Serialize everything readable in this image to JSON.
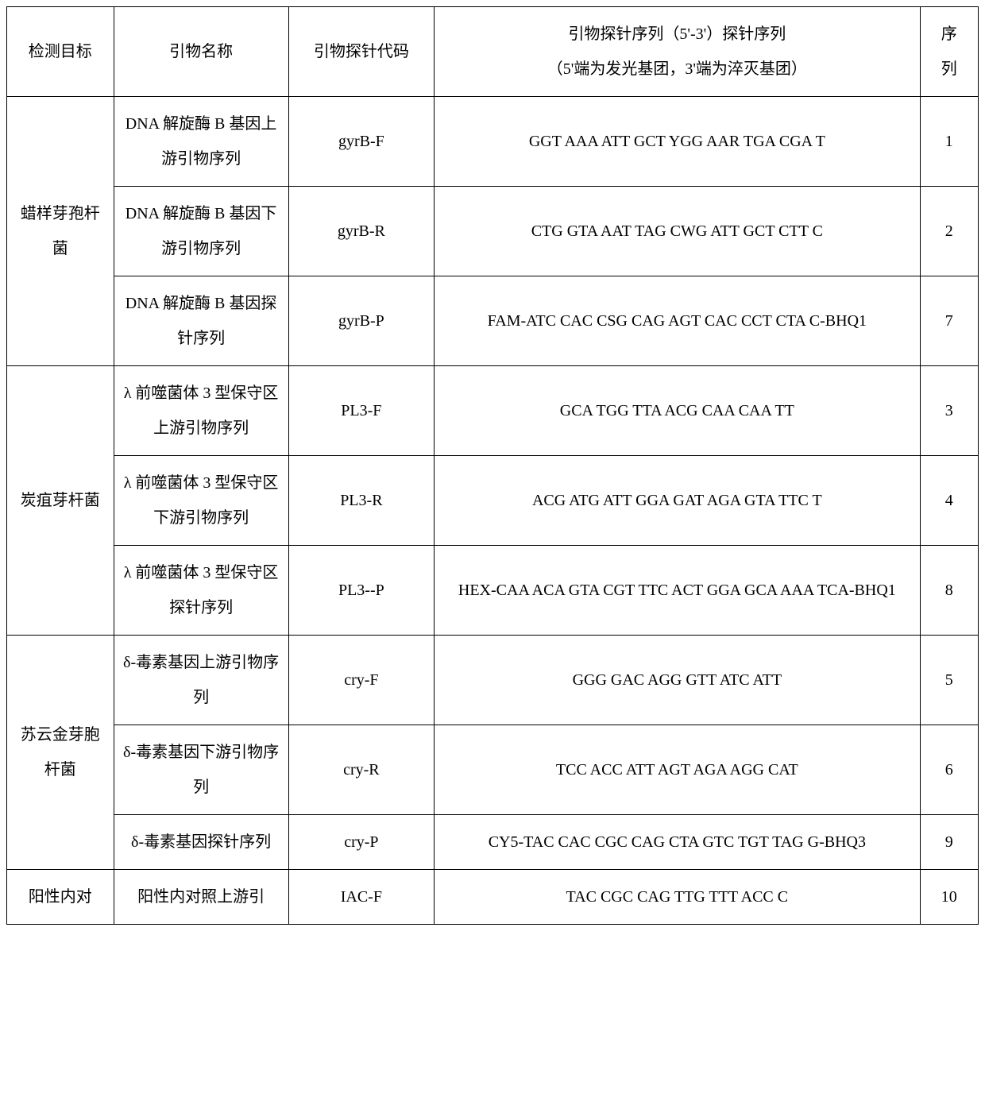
{
  "header": {
    "target": "检测目标",
    "name": "引物名称",
    "code": "引物探针代码",
    "seq_line1": "引物探针序列（5'-3'）探针序列",
    "seq_line2": "（5'端为发光基团，3'端为淬灭基团）",
    "num_line1": "序",
    "num_line2": "列"
  },
  "groups": [
    {
      "target": "蜡样芽孢杆菌",
      "rows": [
        {
          "name": "DNA 解旋酶 B 基因上游引物序列",
          "code": "gyrB-F",
          "seq": "GGT AAA ATT GCT YGG AAR TGA CGA T",
          "num": "1"
        },
        {
          "name": "DNA 解旋酶 B 基因下游引物序列",
          "code": "gyrB-R",
          "seq": "CTG GTA AAT TAG CWG ATT GCT CTT C",
          "num": "2"
        },
        {
          "name": "DNA 解旋酶 B 基因探针序列",
          "code": "gyrB-P",
          "seq": "FAM-ATC CAC CSG CAG AGT CAC CCT CTA C-BHQ1",
          "num": "7"
        }
      ]
    },
    {
      "target": "炭疽芽杆菌",
      "rows": [
        {
          "name": "λ 前噬菌体 3 型保守区上游引物序列",
          "code": "PL3-F",
          "seq": "GCA TGG TTA ACG CAA CAA TT",
          "num": "3"
        },
        {
          "name": "λ 前噬菌体 3 型保守区下游引物序列",
          "code": "PL3-R",
          "seq": "ACG ATG ATT GGA GAT AGA GTA TTC T",
          "num": "4"
        },
        {
          "name": "λ 前噬菌体 3 型保守区探针序列",
          "code": "PL3--P",
          "seq": "HEX-CAA ACA GTA CGT TTC ACT GGA GCA AAA TCA-BHQ1",
          "num": "8"
        }
      ]
    },
    {
      "target": "苏云金芽胞杆菌",
      "rows": [
        {
          "name": "δ-毒素基因上游引物序列",
          "code": "cry-F",
          "seq": "GGG GAC AGG GTT ATC ATT",
          "num": "5"
        },
        {
          "name": "δ-毒素基因下游引物序列",
          "code": "cry-R",
          "seq": "TCC ACC ATT AGT AGA AGG CAT",
          "num": "6"
        },
        {
          "name": "δ-毒素基因探针序列",
          "code": "cry-P",
          "seq": "CY5-TAC CAC CGC CAG CTA GTC TGT TAG G-BHQ3",
          "num": "9"
        }
      ]
    }
  ],
  "tail": {
    "target": "阳性内对",
    "name": "阳性内对照上游引",
    "code": "IAC-F",
    "seq": "TAC CGC CAG TTG TTT ACC C",
    "num": "10"
  }
}
